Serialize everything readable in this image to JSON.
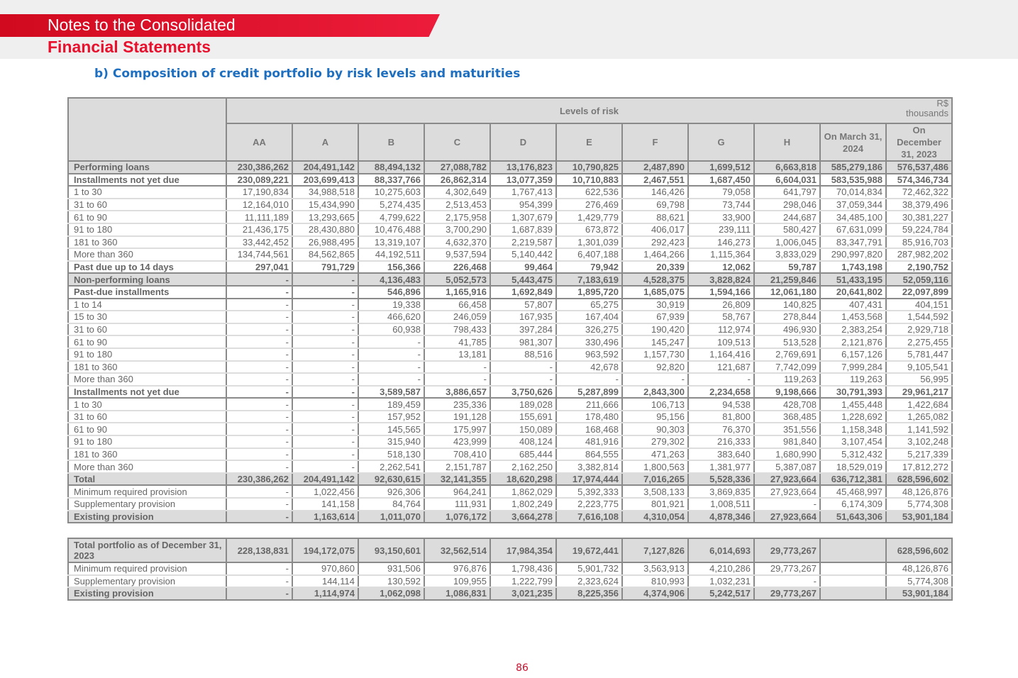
{
  "header": {
    "line1": "Notes to the Consolidated",
    "line2": "Financial Statements"
  },
  "subtitle": "b) Composition of credit portfolio by risk levels and maturities",
  "table": {
    "group_header": "Levels of risk",
    "unit": "R$ thousands",
    "columns": [
      "AA",
      "A",
      "B",
      "C",
      "D",
      "E",
      "F",
      "G",
      "H",
      "On March 31,  2024",
      "On December 31, 2023"
    ],
    "rows": [
      {
        "style": "shade",
        "label": "Performing loans",
        "values": [
          "230,386,262",
          "204,491,142",
          "88,494,132",
          "27,088,782",
          "13,176,823",
          "10,790,825",
          "2,487,890",
          "1,699,512",
          "6,663,818",
          "585,279,186",
          "576,537,486"
        ]
      },
      {
        "style": "bold",
        "label": "Installments not yet due",
        "values": [
          "230,089,221",
          "203,699,413",
          "88,337,766",
          "26,862,314",
          "13,077,359",
          "10,710,883",
          "2,467,551",
          "1,687,450",
          "6,604,031",
          "583,535,988",
          "574,346,734"
        ]
      },
      {
        "style": "",
        "label": "1 to 30",
        "values": [
          "17,190,834",
          "34,988,518",
          "10,275,603",
          "4,302,649",
          "1,767,413",
          "622,536",
          "146,426",
          "79,058",
          "641,797",
          "70,014,834",
          "72,462,322"
        ]
      },
      {
        "style": "",
        "label": "31 to 60",
        "values": [
          "12,164,010",
          "15,434,990",
          "5,274,435",
          "2,513,453",
          "954,399",
          "276,469",
          "69,798",
          "73,744",
          "298,046",
          "37,059,344",
          "38,379,496"
        ]
      },
      {
        "style": "",
        "label": "61 to 90",
        "values": [
          "11,111,189",
          "13,293,665",
          "4,799,622",
          "2,175,958",
          "1,307,679",
          "1,429,779",
          "88,621",
          "33,900",
          "244,687",
          "34,485,100",
          "30,381,227"
        ]
      },
      {
        "style": "",
        "label": "91 to 180",
        "values": [
          "21,436,175",
          "28,430,880",
          "10,476,488",
          "3,700,290",
          "1,687,839",
          "673,872",
          "406,017",
          "239,111",
          "580,427",
          "67,631,099",
          "59,224,784"
        ]
      },
      {
        "style": "",
        "label": "181 to 360",
        "values": [
          "33,442,452",
          "26,988,495",
          "13,319,107",
          "4,632,370",
          "2,219,587",
          "1,301,039",
          "292,423",
          "146,273",
          "1,006,045",
          "83,347,791",
          "85,916,703"
        ]
      },
      {
        "style": "",
        "label": "More than 360",
        "values": [
          "134,744,561",
          "84,562,865",
          "44,192,511",
          "9,537,594",
          "5,140,442",
          "6,407,188",
          "1,464,266",
          "1,115,364",
          "3,833,029",
          "290,997,820",
          "287,982,202"
        ]
      },
      {
        "style": "bold",
        "label": "Past due up to 14 days",
        "values": [
          "297,041",
          "791,729",
          "156,366",
          "226,468",
          "99,464",
          "79,942",
          "20,339",
          "12,062",
          "59,787",
          "1,743,198",
          "2,190,752"
        ]
      },
      {
        "style": "shade",
        "label": "Non-performing loans",
        "values": [
          "-",
          "-",
          "4,136,483",
          "5,052,573",
          "5,443,475",
          "7,183,619",
          "4,528,375",
          "3,828,824",
          "21,259,846",
          "51,433,195",
          "52,059,116"
        ]
      },
      {
        "style": "bold",
        "label": "Past-due installments",
        "values": [
          "-",
          "-",
          "546,896",
          "1,165,916",
          "1,692,849",
          "1,895,720",
          "1,685,075",
          "1,594,166",
          "12,061,180",
          "20,641,802",
          "22,097,899"
        ]
      },
      {
        "style": "",
        "label": "1 to 14",
        "values": [
          "-",
          "-",
          "19,338",
          "66,458",
          "57,807",
          "65,275",
          "30,919",
          "26,809",
          "140,825",
          "407,431",
          "404,151"
        ]
      },
      {
        "style": "",
        "label": "15 to 30",
        "values": [
          "-",
          "-",
          "466,620",
          "246,059",
          "167,935",
          "167,404",
          "67,939",
          "58,767",
          "278,844",
          "1,453,568",
          "1,544,592"
        ]
      },
      {
        "style": "",
        "label": "31 to 60",
        "values": [
          "-",
          "-",
          "60,938",
          "798,433",
          "397,284",
          "326,275",
          "190,420",
          "112,974",
          "496,930",
          "2,383,254",
          "2,929,718"
        ]
      },
      {
        "style": "",
        "label": "61 to 90",
        "values": [
          "-",
          "-",
          "-",
          "41,785",
          "981,307",
          "330,496",
          "145,247",
          "109,513",
          "513,528",
          "2,121,876",
          "2,275,455"
        ]
      },
      {
        "style": "",
        "label": "91 to 180",
        "values": [
          "-",
          "-",
          "-",
          "13,181",
          "88,516",
          "963,592",
          "1,157,730",
          "1,164,416",
          "2,769,691",
          "6,157,126",
          "5,781,447"
        ]
      },
      {
        "style": "",
        "label": "181 to 360",
        "values": [
          "-",
          "-",
          "-",
          "-",
          "-",
          "42,678",
          "92,820",
          "121,687",
          "7,742,099",
          "7,999,284",
          "9,105,541"
        ]
      },
      {
        "style": "",
        "label": "More than 360",
        "values": [
          "-",
          "-",
          "-",
          "-",
          "-",
          "-",
          "-",
          "-",
          "119,263",
          "119,263",
          "56,995"
        ]
      },
      {
        "style": "bold",
        "label": "Installments not yet due",
        "values": [
          "-",
          "-",
          "3,589,587",
          "3,886,657",
          "3,750,626",
          "5,287,899",
          "2,843,300",
          "2,234,658",
          "9,198,666",
          "30,791,393",
          "29,961,217"
        ]
      },
      {
        "style": "",
        "label": "1 to 30",
        "values": [
          "-",
          "-",
          "189,459",
          "235,336",
          "189,028",
          "211,666",
          "106,713",
          "94,538",
          "428,708",
          "1,455,448",
          "1,422,684"
        ]
      },
      {
        "style": "",
        "label": "31 to 60",
        "values": [
          "-",
          "-",
          "157,952",
          "191,128",
          "155,691",
          "178,480",
          "95,156",
          "81,800",
          "368,485",
          "1,228,692",
          "1,265,082"
        ]
      },
      {
        "style": "",
        "label": "61 to 90",
        "values": [
          "-",
          "-",
          "145,565",
          "175,997",
          "150,089",
          "168,468",
          "90,303",
          "76,370",
          "351,556",
          "1,158,348",
          "1,141,592"
        ]
      },
      {
        "style": "",
        "label": "91 to 180",
        "values": [
          "-",
          "-",
          "315,940",
          "423,999",
          "408,124",
          "481,916",
          "279,302",
          "216,333",
          "981,840",
          "3,107,454",
          "3,102,248"
        ]
      },
      {
        "style": "",
        "label": "181 to 360",
        "values": [
          "-",
          "-",
          "518,130",
          "708,410",
          "685,444",
          "864,555",
          "471,263",
          "383,640",
          "1,680,990",
          "5,312,432",
          "5,217,339"
        ]
      },
      {
        "style": "",
        "label": "More than 360",
        "values": [
          "-",
          "-",
          "2,262,541",
          "2,151,787",
          "2,162,250",
          "3,382,814",
          "1,800,563",
          "1,381,977",
          "5,387,087",
          "18,529,019",
          "17,812,272"
        ]
      },
      {
        "style": "shade",
        "label": "Total",
        "values": [
          "230,386,262",
          "204,491,142",
          "92,630,615",
          "32,141,355",
          "18,620,298",
          "17,974,444",
          "7,016,265",
          "5,528,336",
          "27,923,664",
          "636,712,381",
          "628,596,602"
        ]
      },
      {
        "style": "",
        "label": "Minimum required provision",
        "values": [
          "-",
          "1,022,456",
          "926,306",
          "964,241",
          "1,862,029",
          "5,392,333",
          "3,508,133",
          "3,869,835",
          "27,923,664",
          "45,468,997",
          "48,126,876"
        ]
      },
      {
        "style": "",
        "label": "Supplementary provision",
        "values": [
          "-",
          "141,158",
          "84,764",
          "111,931",
          "1,802,249",
          "2,223,775",
          "801,921",
          "1,008,511",
          "-",
          "6,174,309",
          "5,774,308"
        ]
      },
      {
        "style": "shade",
        "label": "Existing provision",
        "values": [
          "-",
          "1,163,614",
          "1,011,070",
          "1,076,172",
          "3,664,278",
          "7,616,108",
          "4,310,054",
          "4,878,346",
          "27,923,664",
          "51,643,306",
          "53,901,184"
        ]
      }
    ]
  },
  "table2": {
    "rows": [
      {
        "style": "shade",
        "label": "Total portfolio as of December 31, 2023",
        "values": [
          "228,138,831",
          "194,172,075",
          "93,150,601",
          "32,562,514",
          "17,984,354",
          "19,672,441",
          "7,127,826",
          "6,014,693",
          "29,773,267",
          "",
          "628,596,602"
        ]
      },
      {
        "style": "",
        "label": "Minimum required provision",
        "values": [
          "-",
          "970,860",
          "931,506",
          "976,876",
          "1,798,436",
          "5,901,732",
          "3,563,913",
          "4,210,286",
          "29,773,267",
          "",
          "48,126,876"
        ]
      },
      {
        "style": "",
        "label": "Supplementary provision",
        "values": [
          "-",
          "144,114",
          "130,592",
          "109,955",
          "1,222,799",
          "2,323,624",
          "810,993",
          "1,032,231",
          "-",
          "",
          "5,774,308"
        ]
      },
      {
        "style": "shade",
        "label": "Existing provision",
        "values": [
          "-",
          "1,114,974",
          "1,062,098",
          "1,086,831",
          "3,021,235",
          "8,225,356",
          "4,374,906",
          "5,242,517",
          "29,773,267",
          "",
          "53,901,184"
        ]
      }
    ]
  },
  "page_number": "86"
}
